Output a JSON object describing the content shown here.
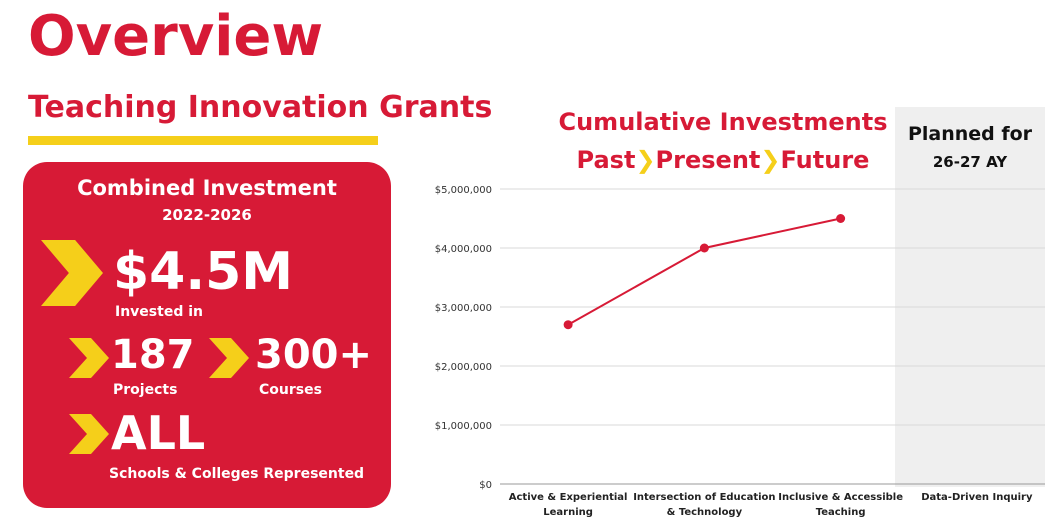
{
  "header": {
    "title": "Overview",
    "subtitle": "Teaching Innovation Grants"
  },
  "investment_panel": {
    "heading": "Combined Investment",
    "years": "2022-2026",
    "total_value": "$4.5M",
    "total_label": "Invested in",
    "projects_value": "187",
    "projects_label": "Projects",
    "courses_value": "300+",
    "courses_label": "Courses",
    "schools_value": "ALL",
    "schools_label": "Schools & Colleges Represented"
  },
  "chart_header": {
    "title": "Cumulative Investments",
    "past": "Past",
    "present": "Present",
    "future": "Future",
    "arrow": "❯"
  },
  "planned": {
    "line1": "Planned for",
    "line2": "26-27 AY"
  },
  "colors": {
    "brand_red": "#d71a36",
    "accent_yellow": "#f5cf1a",
    "planned_bg": "#efefef"
  },
  "chart_data": {
    "type": "line",
    "categories": [
      [
        "Active & Experiential",
        "Learning"
      ],
      [
        "Intersection of Education",
        "& Technology"
      ],
      [
        "Inclusive & Accessible",
        "Teaching"
      ],
      [
        "Data-Driven Inquiry"
      ]
    ],
    "values": [
      2700000,
      4000000,
      4500000,
      null
    ],
    "ylim": [
      0,
      5000000
    ],
    "yticks": [
      {
        "value": 0,
        "label": "$0"
      },
      {
        "value": 1000000,
        "label": "$1,000,000"
      },
      {
        "value": 2000000,
        "label": "$2,000,000"
      },
      {
        "value": 3000000,
        "label": "$3,000,000"
      },
      {
        "value": 4000000,
        "label": "$4,000,000"
      },
      {
        "value": 5000000,
        "label": "$5,000,000"
      }
    ],
    "grid": true,
    "line_color": "#d71a36"
  }
}
